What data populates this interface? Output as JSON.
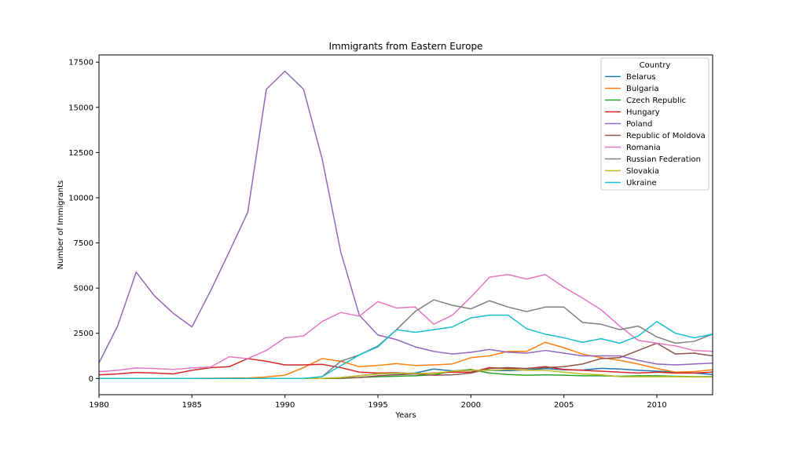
{
  "chart_data": {
    "type": "line",
    "title": "Immigrants from Eastern Europe",
    "xlabel": "Years",
    "ylabel": "Number of Immigrants",
    "xlim": [
      1980,
      2013
    ],
    "ylim": [
      -900,
      17900
    ],
    "x_ticks": [
      1980,
      1985,
      1990,
      1995,
      2000,
      2005,
      2010
    ],
    "y_ticks": [
      0,
      2500,
      5000,
      7500,
      10000,
      12500,
      15000,
      17500
    ],
    "legend": {
      "title": "Country",
      "position": "top-right"
    },
    "x": [
      1980,
      1981,
      1982,
      1983,
      1984,
      1985,
      1986,
      1987,
      1988,
      1989,
      1990,
      1991,
      1992,
      1993,
      1994,
      1995,
      1996,
      1997,
      1998,
      1999,
      2000,
      2001,
      2002,
      2003,
      2004,
      2005,
      2006,
      2007,
      2008,
      2009,
      2010,
      2011,
      2012,
      2013
    ],
    "series": [
      {
        "name": "Belarus",
        "color": "#1f77b4",
        "values": [
          0,
          0,
          0,
          0,
          0,
          0,
          0,
          0,
          0,
          0,
          0,
          0,
          0,
          50,
          150,
          250,
          280,
          300,
          520,
          420,
          450,
          450,
          430,
          470,
          550,
          480,
          460,
          560,
          520,
          450,
          400,
          350,
          300,
          220
        ]
      },
      {
        "name": "Bulgaria",
        "color": "#ff7f0e",
        "values": [
          0,
          0,
          0,
          0,
          0,
          0,
          10,
          30,
          30,
          80,
          180,
          600,
          1100,
          950,
          650,
          720,
          820,
          720,
          750,
          800,
          1150,
          1250,
          1500,
          1500,
          2000,
          1700,
          1350,
          1150,
          1000,
          800,
          550,
          350,
          380,
          480
        ]
      },
      {
        "name": "Czech Republic",
        "color": "#2ca02c",
        "values": [
          0,
          0,
          0,
          0,
          0,
          0,
          0,
          0,
          0,
          0,
          0,
          0,
          0,
          0,
          50,
          100,
          120,
          150,
          200,
          400,
          500,
          300,
          220,
          180,
          200,
          180,
          150,
          150,
          120,
          150,
          150,
          120,
          100,
          100
        ]
      },
      {
        "name": "Hungary",
        "color": "#d62728",
        "values": [
          200,
          250,
          330,
          300,
          250,
          450,
          600,
          650,
          1100,
          950,
          750,
          750,
          780,
          600,
          350,
          300,
          320,
          250,
          300,
          350,
          350,
          600,
          550,
          550,
          650,
          500,
          450,
          400,
          350,
          300,
          350,
          300,
          300,
          350
        ]
      },
      {
        "name": "Poland",
        "color": "#9467bd",
        "values": [
          860,
          2900,
          5880,
          4550,
          3600,
          2850,
          4850,
          7000,
          9200,
          16000,
          17000,
          16000,
          12150,
          7000,
          3500,
          2400,
          2150,
          1750,
          1500,
          1350,
          1450,
          1600,
          1450,
          1400,
          1550,
          1400,
          1250,
          1250,
          1250,
          1000,
          800,
          750,
          800,
          850
        ]
      },
      {
        "name": "Republic of Moldova",
        "color": "#8c564b",
        "values": [
          0,
          0,
          0,
          0,
          0,
          0,
          0,
          0,
          0,
          0,
          0,
          0,
          0,
          20,
          50,
          150,
          200,
          250,
          180,
          200,
          300,
          550,
          600,
          550,
          600,
          650,
          800,
          1100,
          1150,
          1550,
          1950,
          1350,
          1400,
          1250
        ]
      },
      {
        "name": "Romania",
        "color": "#e377c2",
        "values": [
          380,
          450,
          580,
          550,
          500,
          580,
          630,
          1200,
          1100,
          1550,
          2250,
          2350,
          3150,
          3650,
          3450,
          4250,
          3900,
          3950,
          3000,
          3500,
          4500,
          5600,
          5750,
          5500,
          5750,
          5050,
          4450,
          3800,
          2900,
          2100,
          1950,
          1800,
          1550,
          1500
        ]
      },
      {
        "name": "Russian Federation",
        "color": "#7f7f7f",
        "values": [
          0,
          0,
          0,
          0,
          0,
          0,
          0,
          0,
          0,
          0,
          0,
          0,
          100,
          950,
          1300,
          1800,
          2700,
          3700,
          4350,
          4050,
          3850,
          4300,
          3950,
          3700,
          3950,
          3950,
          3100,
          3000,
          2700,
          2900,
          2300,
          1950,
          2050,
          2450
        ]
      },
      {
        "name": "Slovakia",
        "color": "#bcbd22",
        "values": [
          0,
          0,
          0,
          0,
          0,
          0,
          0,
          0,
          0,
          0,
          0,
          0,
          0,
          50,
          150,
          250,
          300,
          280,
          280,
          400,
          450,
          450,
          500,
          450,
          450,
          350,
          250,
          200,
          100,
          100,
          100,
          100,
          80,
          80
        ]
      },
      {
        "name": "Ukraine",
        "color": "#17becf",
        "values": [
          0,
          0,
          0,
          0,
          0,
          0,
          0,
          0,
          0,
          0,
          0,
          0,
          100,
          700,
          1300,
          1750,
          2700,
          2550,
          2700,
          2850,
          3350,
          3500,
          3500,
          2750,
          2450,
          2250,
          2000,
          2200,
          1950,
          2350,
          3150,
          2500,
          2250,
          2450
        ]
      }
    ]
  }
}
